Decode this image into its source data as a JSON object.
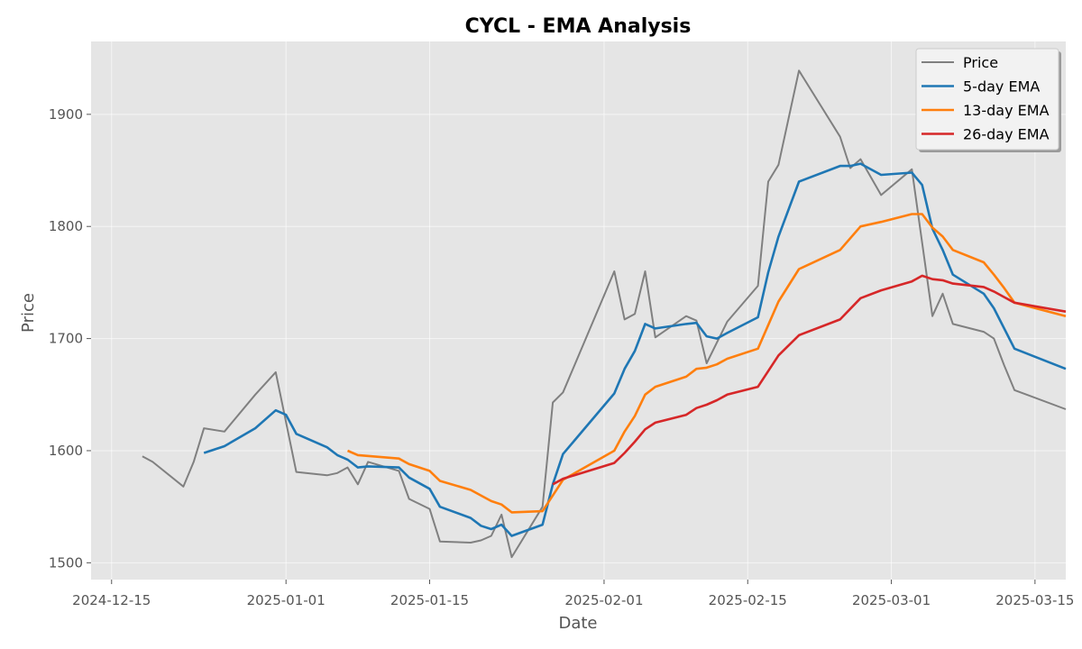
{
  "chart_data": {
    "type": "line",
    "title": "CYCL - EMA Analysis",
    "xlabel": "Date",
    "ylabel": "Price",
    "x_axis_type": "date",
    "xlim": [
      "2024-12-13",
      "2025-03-18"
    ],
    "ylim": [
      1485,
      1965
    ],
    "x_ticks": [
      "2024-12-15",
      "2025-01-01",
      "2025-01-15",
      "2025-02-01",
      "2025-02-15",
      "2025-03-01",
      "2025-03-15"
    ],
    "x_tick_labels": [
      "2024-12-15",
      "2025-01-01",
      "2025-01-15",
      "2025-02-01",
      "2025-02-15",
      "2025-03-01",
      "2025-03-15"
    ],
    "y_ticks": [
      1500,
      1600,
      1700,
      1800,
      1900
    ],
    "y_tick_labels": [
      "1500",
      "1600",
      "1700",
      "1800",
      "1900"
    ],
    "grid": true,
    "legend_position": "top-right",
    "background": "#e5e5e5",
    "series": [
      {
        "name": "Price",
        "color": "#808080",
        "points": [
          [
            "2024-12-18",
            1595
          ],
          [
            "2024-12-19",
            1590
          ],
          [
            "2024-12-22",
            1568
          ],
          [
            "2024-12-23",
            1590
          ],
          [
            "2024-12-24",
            1620
          ],
          [
            "2024-12-26",
            1617
          ],
          [
            "2024-12-29",
            1650
          ],
          [
            "2024-12-31",
            1670
          ],
          [
            "2025-01-02",
            1581
          ],
          [
            "2025-01-05",
            1578
          ],
          [
            "2025-01-06",
            1580
          ],
          [
            "2025-01-07",
            1585
          ],
          [
            "2025-01-08",
            1570
          ],
          [
            "2025-01-09",
            1590
          ],
          [
            "2025-01-12",
            1582
          ],
          [
            "2025-01-13",
            1557
          ],
          [
            "2025-01-15",
            1548
          ],
          [
            "2025-01-16",
            1519
          ],
          [
            "2025-01-19",
            1518
          ],
          [
            "2025-01-20",
            1520
          ],
          [
            "2025-01-21",
            1524
          ],
          [
            "2025-01-22",
            1543
          ],
          [
            "2025-01-23",
            1505
          ],
          [
            "2025-01-26",
            1550
          ],
          [
            "2025-01-27",
            1643
          ],
          [
            "2025-01-28",
            1652
          ],
          [
            "2025-02-02",
            1760
          ],
          [
            "2025-02-03",
            1717
          ],
          [
            "2025-02-04",
            1722
          ],
          [
            "2025-02-05",
            1760
          ],
          [
            "2025-02-06",
            1701
          ],
          [
            "2025-02-09",
            1720
          ],
          [
            "2025-02-10",
            1716
          ],
          [
            "2025-02-11",
            1678
          ],
          [
            "2025-02-13",
            1715
          ],
          [
            "2025-02-16",
            1747
          ],
          [
            "2025-02-17",
            1840
          ],
          [
            "2025-02-18",
            1855
          ],
          [
            "2025-02-20",
            1939
          ],
          [
            "2025-02-24",
            1880
          ],
          [
            "2025-02-25",
            1852
          ],
          [
            "2025-02-26",
            1860
          ],
          [
            "2025-02-28",
            1828
          ],
          [
            "2025-03-03",
            1851
          ],
          [
            "2025-03-05",
            1720
          ],
          [
            "2025-03-06",
            1740
          ],
          [
            "2025-03-07",
            1713
          ],
          [
            "2025-03-10",
            1706
          ],
          [
            "2025-03-11",
            1700
          ],
          [
            "2025-03-12",
            1676
          ],
          [
            "2025-03-13",
            1654
          ],
          [
            "2025-03-18",
            1637
          ]
        ]
      },
      {
        "name": "5-day EMA",
        "color": "#1f77b4",
        "points": [
          [
            "2024-12-24",
            1598
          ],
          [
            "2024-12-26",
            1604
          ],
          [
            "2024-12-29",
            1620
          ],
          [
            "2024-12-31",
            1636
          ],
          [
            "2025-01-01",
            1632
          ],
          [
            "2025-01-02",
            1615
          ],
          [
            "2025-01-05",
            1603
          ],
          [
            "2025-01-06",
            1596
          ],
          [
            "2025-01-07",
            1592
          ],
          [
            "2025-01-08",
            1585
          ],
          [
            "2025-01-09",
            1586
          ],
          [
            "2025-01-12",
            1585
          ],
          [
            "2025-01-13",
            1576
          ],
          [
            "2025-01-15",
            1566
          ],
          [
            "2025-01-16",
            1550
          ],
          [
            "2025-01-19",
            1540
          ],
          [
            "2025-01-20",
            1533
          ],
          [
            "2025-01-21",
            1530
          ],
          [
            "2025-01-22",
            1534
          ],
          [
            "2025-01-23",
            1524
          ],
          [
            "2025-01-26",
            1534
          ],
          [
            "2025-01-27",
            1570
          ],
          [
            "2025-01-28",
            1597
          ],
          [
            "2025-02-02",
            1651
          ],
          [
            "2025-02-03",
            1673
          ],
          [
            "2025-02-04",
            1689
          ],
          [
            "2025-02-05",
            1713
          ],
          [
            "2025-02-06",
            1709
          ],
          [
            "2025-02-09",
            1713
          ],
          [
            "2025-02-10",
            1714
          ],
          [
            "2025-02-11",
            1702
          ],
          [
            "2025-02-12",
            1700
          ],
          [
            "2025-02-13",
            1705
          ],
          [
            "2025-02-16",
            1719
          ],
          [
            "2025-02-17",
            1759
          ],
          [
            "2025-02-18",
            1791
          ],
          [
            "2025-02-20",
            1840
          ],
          [
            "2025-02-24",
            1854
          ],
          [
            "2025-02-25",
            1854
          ],
          [
            "2025-02-26",
            1856
          ],
          [
            "2025-02-28",
            1846
          ],
          [
            "2025-03-03",
            1848
          ],
          [
            "2025-03-04",
            1837
          ],
          [
            "2025-03-05",
            1798
          ],
          [
            "2025-03-06",
            1779
          ],
          [
            "2025-03-07",
            1757
          ],
          [
            "2025-03-10",
            1740
          ],
          [
            "2025-03-11",
            1727
          ],
          [
            "2025-03-13",
            1691
          ],
          [
            "2025-03-18",
            1673
          ]
        ]
      },
      {
        "name": "13-day EMA",
        "color": "#ff7f0e",
        "points": [
          [
            "2025-01-07",
            1600
          ],
          [
            "2025-01-08",
            1596
          ],
          [
            "2025-01-12",
            1593
          ],
          [
            "2025-01-13",
            1588
          ],
          [
            "2025-01-15",
            1582
          ],
          [
            "2025-01-16",
            1573
          ],
          [
            "2025-01-19",
            1565
          ],
          [
            "2025-01-21",
            1555
          ],
          [
            "2025-01-22",
            1552
          ],
          [
            "2025-01-23",
            1545
          ],
          [
            "2025-01-26",
            1546
          ],
          [
            "2025-01-27",
            1560
          ],
          [
            "2025-01-28",
            1574
          ],
          [
            "2025-02-02",
            1600
          ],
          [
            "2025-02-03",
            1617
          ],
          [
            "2025-02-04",
            1631
          ],
          [
            "2025-02-05",
            1650
          ],
          [
            "2025-02-06",
            1657
          ],
          [
            "2025-02-09",
            1666
          ],
          [
            "2025-02-10",
            1673
          ],
          [
            "2025-02-11",
            1674
          ],
          [
            "2025-02-12",
            1677
          ],
          [
            "2025-02-13",
            1682
          ],
          [
            "2025-02-16",
            1691
          ],
          [
            "2025-02-17",
            1712
          ],
          [
            "2025-02-18",
            1733
          ],
          [
            "2025-02-20",
            1762
          ],
          [
            "2025-02-24",
            1779
          ],
          [
            "2025-02-26",
            1800
          ],
          [
            "2025-02-28",
            1804
          ],
          [
            "2025-03-03",
            1811
          ],
          [
            "2025-03-04",
            1811
          ],
          [
            "2025-03-05",
            1799
          ],
          [
            "2025-03-06",
            1791
          ],
          [
            "2025-03-07",
            1779
          ],
          [
            "2025-03-10",
            1768
          ],
          [
            "2025-03-11",
            1757
          ],
          [
            "2025-03-12",
            1745
          ],
          [
            "2025-03-13",
            1732
          ],
          [
            "2025-03-18",
            1720
          ]
        ]
      },
      {
        "name": "26-day EMA",
        "color": "#d62728",
        "points": [
          [
            "2025-01-27",
            1570
          ],
          [
            "2025-01-28",
            1575
          ],
          [
            "2025-02-02",
            1589
          ],
          [
            "2025-02-03",
            1598
          ],
          [
            "2025-02-04",
            1608
          ],
          [
            "2025-02-05",
            1619
          ],
          [
            "2025-02-06",
            1625
          ],
          [
            "2025-02-09",
            1632
          ],
          [
            "2025-02-10",
            1638
          ],
          [
            "2025-02-11",
            1641
          ],
          [
            "2025-02-12",
            1645
          ],
          [
            "2025-02-13",
            1650
          ],
          [
            "2025-02-16",
            1657
          ],
          [
            "2025-02-17",
            1671
          ],
          [
            "2025-02-18",
            1685
          ],
          [
            "2025-02-20",
            1703
          ],
          [
            "2025-02-24",
            1717
          ],
          [
            "2025-02-26",
            1736
          ],
          [
            "2025-02-28",
            1743
          ],
          [
            "2025-03-03",
            1751
          ],
          [
            "2025-03-04",
            1756
          ],
          [
            "2025-03-05",
            1753
          ],
          [
            "2025-03-06",
            1752
          ],
          [
            "2025-03-07",
            1749
          ],
          [
            "2025-03-10",
            1746
          ],
          [
            "2025-03-11",
            1742
          ],
          [
            "2025-03-12",
            1737
          ],
          [
            "2025-03-13",
            1732
          ],
          [
            "2025-03-18",
            1724
          ]
        ]
      }
    ]
  }
}
